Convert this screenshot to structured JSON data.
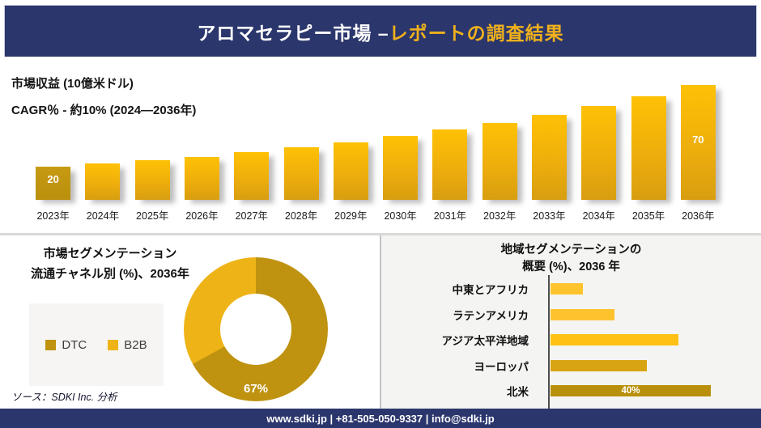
{
  "header": {
    "title_main": "アロマセラピー市場 –",
    "title_accent": "レポートの調査結果"
  },
  "colors": {
    "navy": "#2b366c",
    "gold_accent": "#f0b11c",
    "bar_gradient_top": "#ffc105",
    "bar_gradient_bottom": "#d89e10",
    "bar_first": "#bf940e",
    "panel_gray": "#f4f4f2",
    "divider_gray": "#d9d9d9"
  },
  "chart_data": [
    {
      "type": "bar",
      "title": "市場収益 (10億米ドル)",
      "subtitle": "CAGR％ - 約10% (2024―2036年)",
      "categories": [
        "2023年",
        "2024年",
        "2025年",
        "2026年",
        "2027年",
        "2028年",
        "2029年",
        "2030年",
        "2031年",
        "2032年",
        "2033年",
        "2034年",
        "2035年",
        "2036年"
      ],
      "values": [
        20,
        22,
        24,
        26,
        29,
        32,
        35,
        39,
        43,
        47,
        52,
        57,
        63,
        70
      ],
      "shown_data_labels": {
        "2023年": "20",
        "2036年": "70"
      },
      "xlabel": "",
      "ylabel": "10億米ドル",
      "ylim": [
        0,
        70
      ],
      "grid": false,
      "legend": "none",
      "bar_color_first": "#bf940e",
      "bar_gradient": [
        "#ffc105",
        "#d89e10"
      ]
    },
    {
      "type": "pie",
      "title": "市場セグメンテーション",
      "subtitle": "流通チャネル別 (%)、2036年",
      "labels": [
        "DTC",
        "B2B"
      ],
      "values": [
        67,
        33
      ],
      "colors": [
        "#bf9310",
        "#eeb417"
      ],
      "shown_data_labels": {
        "DTC": "67%"
      },
      "donut": true,
      "legend_position": "left"
    },
    {
      "type": "bar",
      "orientation": "horizontal",
      "title_line1": "地域セグメンテーションの",
      "title_line2": "概要 (%)、2036 年",
      "categories": [
        "中東とアフリカ",
        "ラテンアメリカ",
        "アジア太平洋地域",
        "ヨーロッパ",
        "北米"
      ],
      "values": [
        8,
        16,
        32,
        24,
        40
      ],
      "bar_colors": [
        "#ffc42d",
        "#fcc32f",
        "#ffc114",
        "#d9a414",
        "#b9900c"
      ],
      "shown_data_labels": {
        "北米": "40%"
      },
      "xlim": [
        0,
        42
      ],
      "grid": false,
      "legend": "none"
    }
  ],
  "source": {
    "label": "ソース：SDKI Inc. 分析"
  },
  "footer": {
    "contact": "www.sdki.jp | +81-505-050-9337 | info@sdki.jp"
  }
}
